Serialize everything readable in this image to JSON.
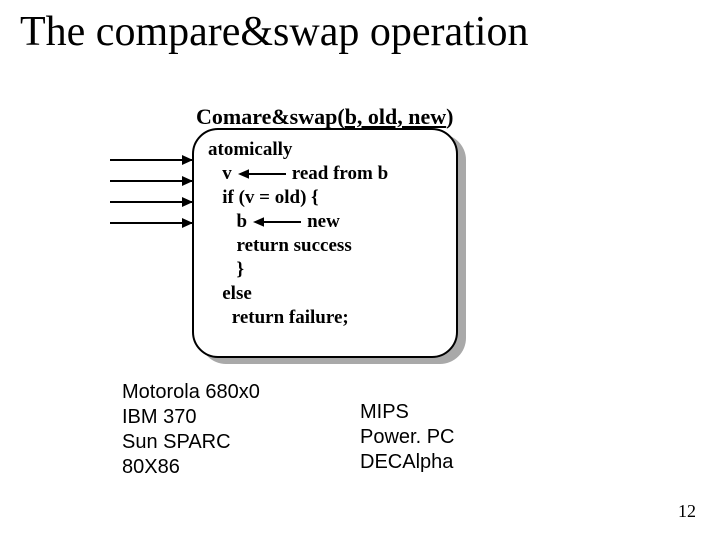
{
  "title": "The compare&swap operation",
  "signature": {
    "prefix": "Comare&swap(",
    "args": "b, old, new",
    "suffix": ")"
  },
  "code": {
    "l1": "atomically",
    "l2a": "   v",
    "l2b": "read from b",
    "l3": "   if (v = old) {",
    "l4a": "      b",
    "l4b": "new",
    "l5": "      return success",
    "l6": "      }",
    "l7": "   else",
    "l8": "     return failure;"
  },
  "arrows": {
    "inline_svg_w": 48,
    "inline_svg_h": 10,
    "in_arrow_tops": [
      159,
      180,
      201,
      222
    ]
  },
  "procs_left": [
    "Motorola 680x0",
    "IBM 370",
    "Sun SPARC",
    "80X86"
  ],
  "procs_right": [
    "MIPS",
    "Power. PC",
    "DECAlpha"
  ],
  "page_number": "12",
  "colors": {
    "bg": "#ffffff",
    "fg": "#000000",
    "shadow": "#a9a9a9"
  }
}
